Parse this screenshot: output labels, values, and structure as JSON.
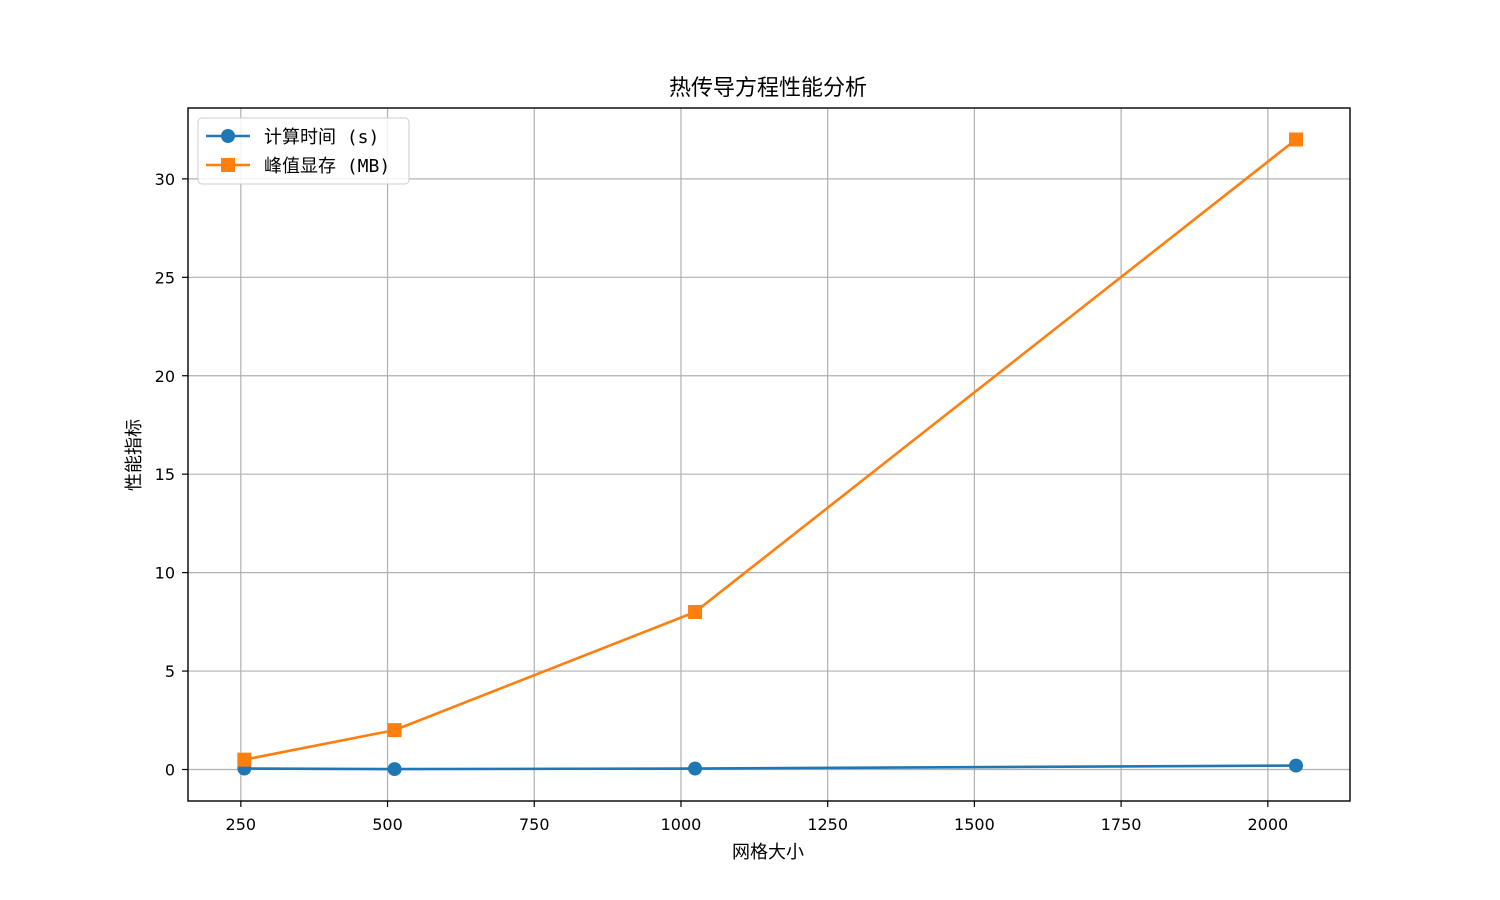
{
  "chart_data": {
    "type": "line",
    "title": "热传导方程性能分析",
    "xlabel": "网格大小",
    "ylabel": "性能指标",
    "xlim": [
      160,
      2140
    ],
    "ylim": [
      -1.6,
      33.6
    ],
    "xticks": [
      250,
      500,
      750,
      1000,
      1250,
      1500,
      1750,
      2000
    ],
    "yticks": [
      0,
      5,
      10,
      15,
      20,
      25,
      30
    ],
    "grid": true,
    "legend_position": "top-left",
    "series": [
      {
        "name": "计算时间 (s)",
        "color": "#1f77b4",
        "marker": "circle",
        "x": [
          256,
          512,
          1024,
          2048
        ],
        "y": [
          0.05,
          0.02,
          0.05,
          0.2
        ]
      },
      {
        "name": "峰值显存 (MB)",
        "color": "#ff7f0e",
        "marker": "square",
        "x": [
          256,
          512,
          1024,
          2048
        ],
        "y": [
          0.5,
          2.0,
          8.0,
          32.0
        ]
      }
    ]
  }
}
